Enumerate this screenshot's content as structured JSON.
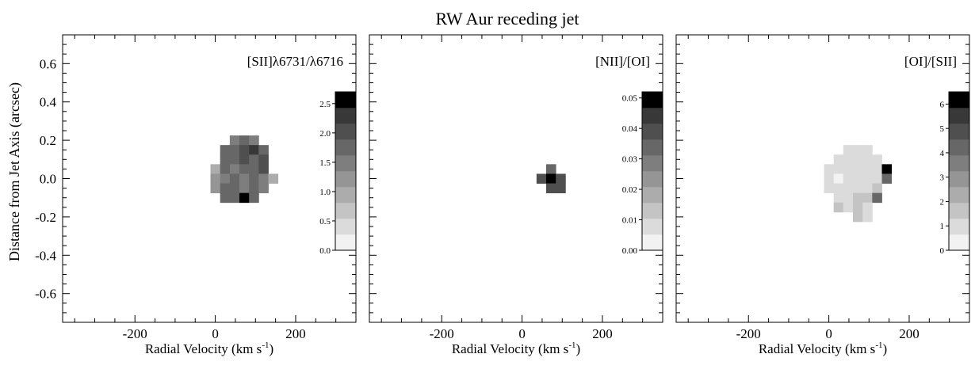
{
  "figure": {
    "title": "RW Aur receding jet",
    "ylabel": "Distance from Jet Axis (arcsec)",
    "xlabel": "Radial Velocity (km s",
    "xlabel_sup": "-1",
    "xlabel_close": ")"
  },
  "chart_data": [
    {
      "type": "heatmap",
      "title": "[SII]λ6731/λ6716",
      "xlim": [
        -380,
        350
      ],
      "ylim": [
        -0.75,
        0.75
      ],
      "xticks": [
        -200,
        0,
        200
      ],
      "yticks": [
        -0.6,
        -0.4,
        -0.2,
        0.0,
        0.2,
        0.4,
        0.6
      ],
      "pixel_size": [
        24,
        0.05
      ],
      "colorbar": {
        "levels": 10,
        "vmin": 0,
        "vmax": 2.7,
        "ticks": [
          "0.0",
          "0.5",
          "1.0",
          "1.5",
          "2.0",
          "2.5"
        ],
        "tick_values": [
          0,
          0.5,
          1.0,
          1.5,
          2.0,
          2.5
        ]
      },
      "cells": [
        [
          48,
          0.2,
          1.6
        ],
        [
          72,
          0.2,
          1.7
        ],
        [
          96,
          0.2,
          1.6
        ],
        [
          24,
          0.15,
          1.7
        ],
        [
          48,
          0.15,
          1.8
        ],
        [
          72,
          0.15,
          1.9
        ],
        [
          96,
          0.15,
          2.2
        ],
        [
          120,
          0.15,
          1.7
        ],
        [
          24,
          0.1,
          1.8
        ],
        [
          48,
          0.1,
          1.7
        ],
        [
          72,
          0.1,
          2.0
        ],
        [
          96,
          0.1,
          1.8
        ],
        [
          120,
          0.1,
          2.0
        ],
        [
          0,
          0.05,
          1.0
        ],
        [
          24,
          0.05,
          1.7
        ],
        [
          48,
          0.05,
          1.5
        ],
        [
          72,
          0.05,
          1.8
        ],
        [
          96,
          0.05,
          1.7
        ],
        [
          120,
          0.05,
          2.1
        ],
        [
          0,
          0.0,
          1.1
        ],
        [
          24,
          0.0,
          1.6
        ],
        [
          48,
          0.0,
          1.8
        ],
        [
          72,
          0.0,
          1.6
        ],
        [
          96,
          0.0,
          1.8
        ],
        [
          120,
          0.0,
          1.6
        ],
        [
          144,
          0.0,
          1.0
        ],
        [
          0,
          -0.05,
          1.2
        ],
        [
          24,
          -0.05,
          1.8
        ],
        [
          48,
          -0.05,
          1.7
        ],
        [
          72,
          -0.05,
          1.6
        ],
        [
          96,
          -0.05,
          1.7
        ],
        [
          120,
          -0.05,
          1.6
        ],
        [
          24,
          -0.1,
          1.7
        ],
        [
          48,
          -0.1,
          1.8
        ],
        [
          72,
          -0.1,
          2.6
        ],
        [
          96,
          -0.1,
          1.8
        ]
      ]
    },
    {
      "type": "heatmap",
      "title": "[NII]/[OI]",
      "xlim": [
        -380,
        350
      ],
      "ylim": [
        -0.75,
        0.75
      ],
      "xticks": [
        -200,
        0,
        200
      ],
      "yticks": [
        -0.6,
        -0.4,
        -0.2,
        0.0,
        0.2,
        0.4,
        0.6
      ],
      "pixel_size": [
        24,
        0.05
      ],
      "colorbar": {
        "levels": 10,
        "vmin": 0,
        "vmax": 0.052,
        "ticks": [
          "0.00",
          "0.01",
          "0.02",
          "0.03",
          "0.04",
          "0.05"
        ],
        "tick_values": [
          0,
          0.01,
          0.02,
          0.03,
          0.04,
          0.05
        ]
      },
      "cells": [
        [
          72,
          0.05,
          0.036
        ],
        [
          48,
          0.0,
          0.04
        ],
        [
          72,
          0.0,
          0.051
        ],
        [
          96,
          0.0,
          0.04
        ],
        [
          72,
          -0.05,
          0.04
        ],
        [
          96,
          -0.05,
          0.039
        ]
      ]
    },
    {
      "type": "heatmap",
      "title": "[OI]/[SII]",
      "xlim": [
        -380,
        350
      ],
      "ylim": [
        -0.75,
        0.75
      ],
      "xticks": [
        -200,
        0,
        200
      ],
      "yticks": [
        -0.6,
        -0.4,
        -0.2,
        0.0,
        0.2,
        0.4,
        0.6
      ],
      "pixel_size": [
        24,
        0.05
      ],
      "colorbar": {
        "levels": 10,
        "vmin": 0,
        "vmax": 6.5,
        "ticks": [
          "0",
          "1",
          "2",
          "3",
          "4",
          "5",
          "6"
        ],
        "tick_values": [
          0,
          1,
          2,
          3,
          4,
          5,
          6
        ]
      },
      "cells": [
        [
          48,
          0.15,
          1.0
        ],
        [
          72,
          0.15,
          0.8
        ],
        [
          96,
          0.15,
          0.7
        ],
        [
          24,
          0.1,
          0.9
        ],
        [
          48,
          0.1,
          0.9
        ],
        [
          72,
          0.1,
          0.7
        ],
        [
          96,
          0.1,
          0.8
        ],
        [
          120,
          0.1,
          0.9
        ],
        [
          0,
          0.05,
          0.8
        ],
        [
          24,
          0.05,
          0.7
        ],
        [
          48,
          0.05,
          0.8
        ],
        [
          72,
          0.05,
          0.7
        ],
        [
          96,
          0.05,
          0.7
        ],
        [
          120,
          0.05,
          1.0
        ],
        [
          144,
          0.05,
          6.4
        ],
        [
          0,
          0.0,
          0.8
        ],
        [
          24,
          0.0,
          0.6
        ],
        [
          48,
          0.0,
          0.8
        ],
        [
          72,
          0.0,
          0.8
        ],
        [
          96,
          0.0,
          0.9
        ],
        [
          120,
          0.0,
          1.1
        ],
        [
          144,
          0.0,
          4.2
        ],
        [
          0,
          -0.05,
          0.9
        ],
        [
          24,
          -0.05,
          0.8
        ],
        [
          48,
          -0.05,
          0.9
        ],
        [
          72,
          -0.05,
          0.9
        ],
        [
          96,
          -0.05,
          1.2
        ],
        [
          120,
          -0.05,
          1.6
        ],
        [
          24,
          -0.1,
          1.2
        ],
        [
          48,
          -0.1,
          1.1
        ],
        [
          72,
          -0.1,
          1.4
        ],
        [
          96,
          -0.1,
          1.5
        ],
        [
          120,
          -0.1,
          4.0
        ],
        [
          24,
          -0.15,
          1.4
        ],
        [
          48,
          -0.15,
          1.1
        ],
        [
          72,
          -0.15,
          1.3
        ],
        [
          96,
          -0.15,
          1.2
        ],
        [
          72,
          -0.2,
          1.3
        ],
        [
          96,
          -0.2,
          1.1
        ]
      ]
    }
  ]
}
